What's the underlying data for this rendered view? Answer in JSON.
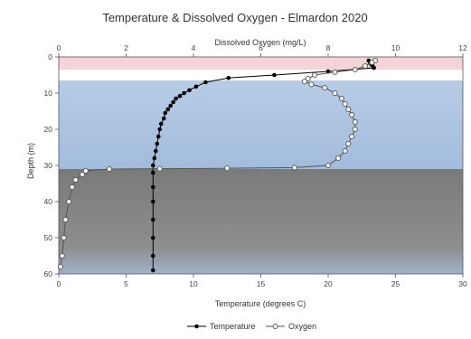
{
  "colors": {
    "epilimnion": "#f6d3d8",
    "metalimnion": "#ffffff",
    "hypolimnion_top": "#b7cce6",
    "hypolimnion_bottom": "#a3bcdc",
    "sediment_top": "#7a7a7a",
    "sediment_bottom": "#9fb3cc",
    "temperature": "#000000",
    "oxygen": "#555555",
    "axis": "#555555"
  },
  "chart_data": {
    "type": "line",
    "title": "Temperature & Dissolved Oxygen - Elmardon 2020",
    "xlabel": "Temperature (degrees C)",
    "x2label": "Dissolved Oxygen (mg/L)",
    "ylabel": "Depth (m)",
    "xlim": [
      0,
      30
    ],
    "x2lim": [
      0,
      12
    ],
    "ylim": [
      0,
      60
    ],
    "y_inverted": true,
    "x_ticks": [
      "0",
      "5",
      "10",
      "15",
      "20",
      "25",
      "30"
    ],
    "x2_ticks": [
      "0",
      "2",
      "4",
      "6",
      "8",
      "10",
      "12"
    ],
    "y_ticks": [
      "0",
      "10",
      "20",
      "30",
      "40",
      "50",
      "60"
    ],
    "bands": [
      {
        "from": 0,
        "to": 3.5,
        "fill": "epilimnion"
      },
      {
        "from": 3.5,
        "to": 6.5,
        "fill": "metalimnion"
      },
      {
        "from": 6.5,
        "to": 31,
        "fill": "hypolimnion"
      },
      {
        "from": 31,
        "to": 60,
        "fill": "sediment"
      }
    ],
    "legend": "bottom-center",
    "series": [
      {
        "name": "Temperature",
        "axis": "x",
        "marker": "filled-circle",
        "points": [
          [
            23,
            1
          ],
          [
            23.1,
            1.5
          ],
          [
            23.2,
            2
          ],
          [
            23.3,
            2.5
          ],
          [
            23.4,
            3
          ],
          [
            20,
            4
          ],
          [
            16,
            5
          ],
          [
            12.6,
            5.8
          ],
          [
            10.9,
            7
          ],
          [
            10.2,
            8.2
          ],
          [
            9.7,
            9.2
          ],
          [
            9.3,
            10
          ],
          [
            9.0,
            10.8
          ],
          [
            8.7,
            11.5
          ],
          [
            8.5,
            12.5
          ],
          [
            8.3,
            13.5
          ],
          [
            8.1,
            14.5
          ],
          [
            7.9,
            15.5
          ],
          [
            7.8,
            17
          ],
          [
            7.6,
            18.5
          ],
          [
            7.5,
            20
          ],
          [
            7.4,
            22
          ],
          [
            7.3,
            24
          ],
          [
            7.2,
            26
          ],
          [
            7.1,
            28
          ],
          [
            7.0,
            30
          ],
          [
            7.0,
            32
          ],
          [
            7.0,
            36
          ],
          [
            7.0,
            40
          ],
          [
            7.0,
            45
          ],
          [
            7.0,
            50
          ],
          [
            7.0,
            55
          ],
          [
            7.0,
            59
          ]
        ]
      },
      {
        "name": "Oxygen",
        "axis": "x2",
        "marker": "open-circle",
        "points": [
          [
            9.4,
            1
          ],
          [
            9.3,
            1.5
          ],
          [
            9.1,
            2.5
          ],
          [
            8.8,
            3.5
          ],
          [
            8.2,
            4.2
          ],
          [
            7.6,
            5
          ],
          [
            7.4,
            6
          ],
          [
            7.3,
            6.8
          ],
          [
            7.5,
            7.6
          ],
          [
            7.9,
            8.5
          ],
          [
            8.2,
            10
          ],
          [
            8.4,
            11.5
          ],
          [
            8.5,
            13
          ],
          [
            8.6,
            14.5
          ],
          [
            8.7,
            16
          ],
          [
            8.8,
            18
          ],
          [
            8.8,
            20
          ],
          [
            8.7,
            22
          ],
          [
            8.6,
            24
          ],
          [
            8.5,
            26
          ],
          [
            8.3,
            28
          ],
          [
            8.0,
            30
          ],
          [
            7.0,
            30.6
          ],
          [
            5.0,
            30.8
          ],
          [
            3.0,
            30.9
          ],
          [
            1.5,
            31
          ],
          [
            0.8,
            31.5
          ],
          [
            0.7,
            32.5
          ],
          [
            0.5,
            34
          ],
          [
            0.4,
            36
          ],
          [
            0.3,
            40
          ],
          [
            0.2,
            45
          ],
          [
            0.15,
            50
          ],
          [
            0.1,
            55
          ],
          [
            0.05,
            58
          ]
        ]
      }
    ]
  }
}
